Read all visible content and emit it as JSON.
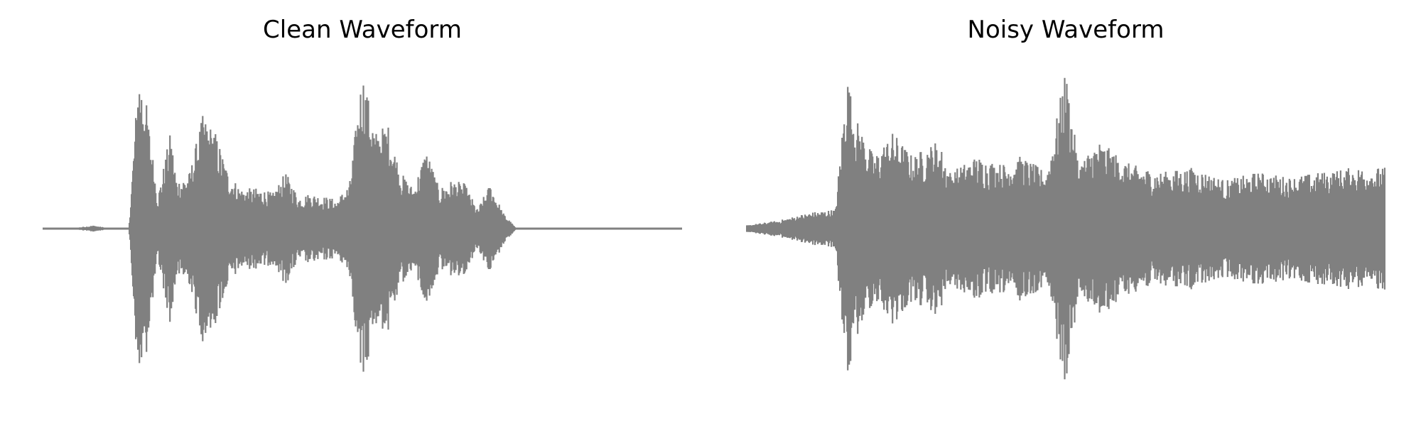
{
  "chart_data": [
    {
      "type": "line",
      "title": "Clean Waveform",
      "xlabel": "",
      "ylabel": "",
      "axes_visible": false,
      "grid": false,
      "color": "#808080",
      "x_range": [
        0,
        1
      ],
      "ylim": [
        -1,
        1
      ],
      "envelope": {
        "description_units": "normalized time vs normalized amplitude",
        "x": [
          0.0,
          0.05,
          0.08,
          0.1,
          0.135,
          0.15,
          0.16,
          0.18,
          0.2,
          0.21,
          0.23,
          0.25,
          0.27,
          0.29,
          0.31,
          0.34,
          0.36,
          0.38,
          0.4,
          0.42,
          0.44,
          0.46,
          0.48,
          0.5,
          0.52,
          0.54,
          0.56,
          0.58,
          0.6,
          0.62,
          0.64,
          0.66,
          0.68,
          0.7,
          0.72,
          0.74,
          0.76,
          0.78,
          0.8,
          1.0
        ],
        "peak": [
          0.005,
          0.005,
          0.02,
          0.005,
          0.005,
          0.99,
          0.85,
          0.2,
          0.6,
          0.3,
          0.35,
          0.7,
          0.6,
          0.35,
          0.25,
          0.25,
          0.22,
          0.35,
          0.2,
          0.22,
          0.2,
          0.18,
          0.28,
          0.99,
          0.6,
          0.65,
          0.35,
          0.25,
          0.5,
          0.25,
          0.3,
          0.28,
          0.12,
          0.28,
          0.1,
          0.005,
          0.005,
          0.005,
          0.005,
          0.005
        ]
      }
    },
    {
      "type": "line",
      "title": "Noisy Waveform",
      "xlabel": "",
      "ylabel": "",
      "axes_visible": false,
      "grid": false,
      "color": "#808080",
      "x_range": [
        0,
        1
      ],
      "ylim": [
        -1,
        1
      ],
      "envelope": {
        "description_units": "normalized time vs normalized amplitude",
        "x": [
          0.0,
          0.05,
          0.1,
          0.14,
          0.158,
          0.17,
          0.2,
          0.23,
          0.26,
          0.3,
          0.32,
          0.36,
          0.4,
          0.43,
          0.47,
          0.5,
          0.52,
          0.55,
          0.6,
          0.65,
          0.7,
          0.75,
          0.8,
          0.85,
          0.9,
          0.95,
          1.0
        ],
        "peak": [
          0.02,
          0.05,
          0.1,
          0.12,
          0.97,
          0.7,
          0.45,
          0.6,
          0.45,
          0.55,
          0.35,
          0.45,
          0.4,
          0.45,
          0.35,
          0.99,
          0.4,
          0.55,
          0.4,
          0.35,
          0.38,
          0.3,
          0.35,
          0.32,
          0.35,
          0.38,
          0.38
        ]
      }
    }
  ]
}
